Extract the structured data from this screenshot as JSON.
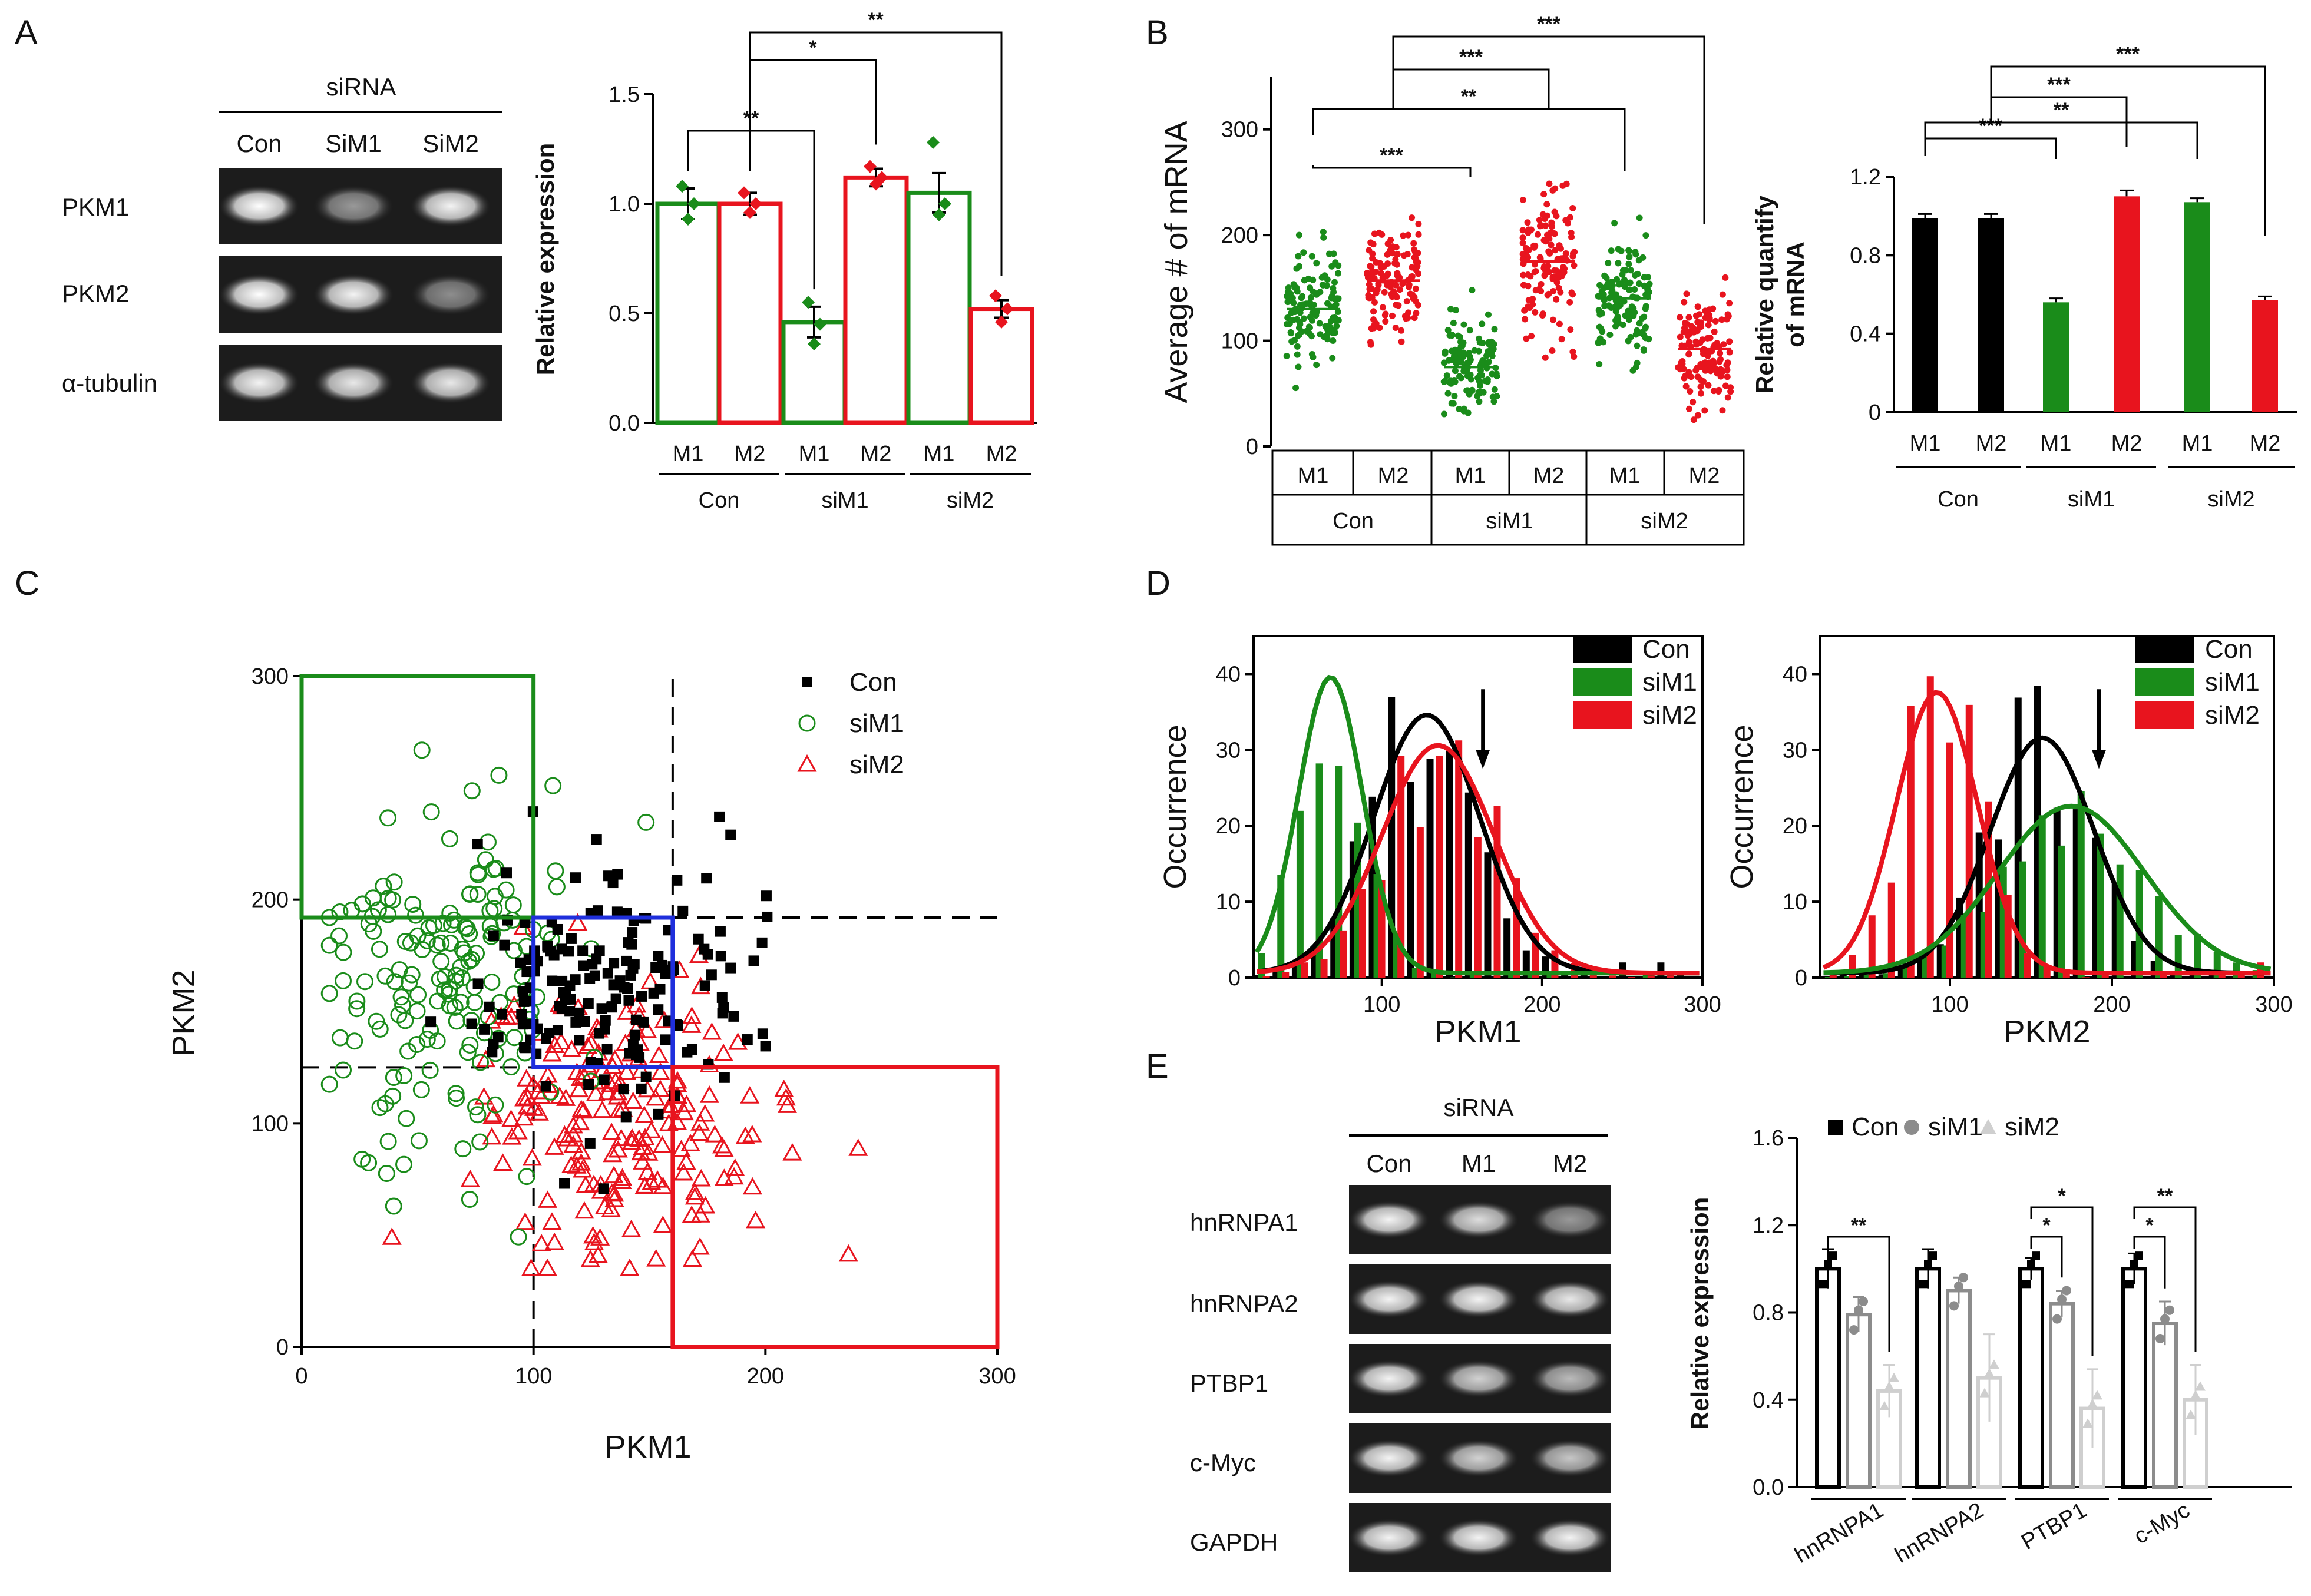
{
  "figure": {
    "panels": {
      "a": "A",
      "b": "B",
      "c": "C",
      "d": "D",
      "e": "E"
    },
    "gel_a": {
      "header": "siRNA",
      "lanes": [
        "Con",
        "SiM1",
        "SiM2"
      ],
      "rows": [
        "PKM1",
        "PKM2",
        "α-tubulin"
      ]
    },
    "gel_e": {
      "header": "siRNA",
      "lanes": [
        "Con",
        "M1",
        "M2"
      ],
      "rows": [
        "hnRNPA1",
        "hnRNPA2",
        "PTBP1",
        "c-Myc",
        "GAPDH"
      ]
    }
  },
  "colors": {
    "green": "#1a8c1a",
    "red": "#e8141e",
    "black": "#000000",
    "blue": "#1f2fdc",
    "gray": "#8c8c8c",
    "lightgray": "#cfcfcf"
  },
  "chart_data": [
    {
      "id": "A",
      "type": "bar",
      "ylabel": "Relative expression",
      "ylim": [
        0,
        1.5
      ],
      "yticks": [
        "0.0",
        "0.5",
        "1.0",
        "1.5"
      ],
      "bars": [
        {
          "label": "M1",
          "group": "Con",
          "value": 1.0,
          "err": 0.07,
          "color": "green"
        },
        {
          "label": "M2",
          "group": "Con",
          "value": 1.0,
          "err": 0.05,
          "color": "red"
        },
        {
          "label": "M1",
          "group": "siM1",
          "value": 0.46,
          "err": 0.07,
          "color": "green"
        },
        {
          "label": "M2",
          "group": "siM1",
          "value": 1.12,
          "err": 0.04,
          "color": "red"
        },
        {
          "label": "M1",
          "group": "siM2",
          "value": 1.05,
          "err": 0.09,
          "color": "green"
        },
        {
          "label": "M2",
          "group": "siM2",
          "value": 0.52,
          "err": 0.04,
          "color": "red"
        }
      ],
      "points": [
        [
          1.08,
          0.93,
          1.0
        ],
        [
          1.05,
          0.96,
          1.0
        ],
        [
          0.55,
          0.36,
          0.45
        ],
        [
          1.17,
          1.09,
          1.12
        ],
        [
          1.28,
          0.95,
          1.0
        ],
        [
          0.58,
          0.46,
          0.52
        ]
      ],
      "groups": [
        "Con",
        "siM1",
        "siM2"
      ],
      "sig": [
        {
          "a": 0,
          "b": 2,
          "label": "**"
        },
        {
          "a": 1,
          "b": 3,
          "label": "*"
        },
        {
          "a": 1,
          "b": 5,
          "label": "**"
        }
      ]
    },
    {
      "id": "B-left",
      "type": "scatter",
      "ylabel": "Average # of mRNA",
      "ylim": [
        0,
        350
      ],
      "yticks": [
        "0",
        "100",
        "200",
        "300"
      ],
      "columns": [
        {
          "label": "M1",
          "group": "Con",
          "mean": 130,
          "sd": 25,
          "color": "green"
        },
        {
          "label": "M2",
          "group": "Con",
          "mean": 157,
          "sd": 25,
          "color": "red"
        },
        {
          "label": "M1",
          "group": "siM1",
          "mean": 75,
          "sd": 22,
          "color": "green"
        },
        {
          "label": "M2",
          "group": "siM1",
          "mean": 175,
          "sd": 35,
          "color": "red"
        },
        {
          "label": "M1",
          "group": "siM2",
          "mean": 140,
          "sd": 28,
          "color": "green"
        },
        {
          "label": "M2",
          "group": "siM2",
          "mean": 92,
          "sd": 28,
          "color": "red"
        }
      ],
      "groups": [
        "Con",
        "siM1",
        "siM2"
      ],
      "sig": [
        {
          "a": 0,
          "b": 2,
          "label": "***"
        },
        {
          "a": 0,
          "b": 4,
          "label": "**"
        },
        {
          "a": 1,
          "b": 3,
          "label": "***"
        },
        {
          "a": 1,
          "b": 5,
          "label": "***"
        }
      ]
    },
    {
      "id": "B-right",
      "type": "bar",
      "ylabel": "Relative quantify",
      "ylabel2": "of mRNA",
      "ylim": [
        0,
        1.2
      ],
      "yticks": [
        "0",
        "0.4",
        "0.8",
        "1.2"
      ],
      "bars": [
        {
          "label": "M1",
          "group": "Con",
          "value": 0.99,
          "err": 0.02,
          "color": "black"
        },
        {
          "label": "M2",
          "group": "Con",
          "value": 0.99,
          "err": 0.02,
          "color": "black"
        },
        {
          "label": "M1",
          "group": "siM1",
          "value": 0.56,
          "err": 0.02,
          "color": "green"
        },
        {
          "label": "M2",
          "group": "siM1",
          "value": 1.1,
          "err": 0.03,
          "color": "red"
        },
        {
          "label": "M1",
          "group": "siM2",
          "value": 1.07,
          "err": 0.02,
          "color": "green"
        },
        {
          "label": "M2",
          "group": "siM2",
          "value": 0.57,
          "err": 0.02,
          "color": "red"
        }
      ],
      "groups": [
        "Con",
        "siM1",
        "siM2"
      ],
      "sig": [
        {
          "a": 0,
          "b": 2,
          "label": "***"
        },
        {
          "a": 0,
          "b": 4,
          "label": "**"
        },
        {
          "a": 1,
          "b": 3,
          "label": "***"
        },
        {
          "a": 1,
          "b": 5,
          "label": "***"
        }
      ]
    },
    {
      "id": "C",
      "type": "scatter",
      "xlabel": "PKM1",
      "ylabel": "PKM2",
      "xlim": [
        0,
        300
      ],
      "ylim": [
        0,
        300
      ],
      "xticks": [
        "0",
        "100",
        "200",
        "300"
      ],
      "yticks": [
        "0",
        "100",
        "200",
        "300"
      ],
      "legend": [
        "Con",
        "siM1",
        "siM2"
      ],
      "series": [
        {
          "name": "Con",
          "cx": 130,
          "cy": 160,
          "sx": 28,
          "sy": 30,
          "n": 170
        },
        {
          "name": "siM1",
          "cx": 65,
          "cy": 160,
          "sx": 28,
          "sy": 40,
          "n": 170
        },
        {
          "name": "siM2",
          "cx": 135,
          "cy": 100,
          "sx": 32,
          "sy": 30,
          "n": 200
        }
      ],
      "dashed_x": [
        100,
        160
      ],
      "dashed_y": [
        125,
        192
      ],
      "boxes": [
        {
          "color": "green",
          "x0": 0,
          "x1": 100,
          "y0": 192,
          "y1": 300
        },
        {
          "color": "blue",
          "x0": 100,
          "x1": 160,
          "y0": 125,
          "y1": 192
        },
        {
          "color": "red",
          "x0": 160,
          "x1": 300,
          "y0": 0,
          "y1": 125
        }
      ]
    },
    {
      "id": "D-left",
      "type": "bar",
      "xlabel": "PKM1",
      "ylabel": "Occurrence",
      "xlim": [
        20,
        300
      ],
      "ylim": [
        0,
        45
      ],
      "xticks": [
        "100",
        "200",
        "300"
      ],
      "yticks": [
        "0",
        "10",
        "20",
        "30",
        "40"
      ],
      "legend": [
        "Con",
        "siM1",
        "siM2"
      ],
      "series": [
        {
          "name": "Con",
          "mu": 128,
          "sigma": 33,
          "amp": 34
        },
        {
          "name": "siM1",
          "mu": 68,
          "sigma": 20,
          "amp": 39
        },
        {
          "name": "siM2",
          "mu": 135,
          "sigma": 35,
          "amp": 30
        }
      ],
      "arrow_x": 163
    },
    {
      "id": "D-right",
      "type": "bar",
      "xlabel": "PKM2",
      "ylabel": "Occurrence",
      "xlim": [
        20,
        300
      ],
      "ylim": [
        0,
        45
      ],
      "xticks": [
        "100",
        "200",
        "300"
      ],
      "yticks": [
        "0",
        "10",
        "20",
        "30",
        "40"
      ],
      "legend": [
        "Con",
        "siM1",
        "siM2"
      ],
      "series": [
        {
          "name": "Con",
          "mu": 157,
          "sigma": 32,
          "amp": 31
        },
        {
          "name": "siM1",
          "mu": 175,
          "sigma": 45,
          "amp": 22
        },
        {
          "name": "siM2",
          "mu": 92,
          "sigma": 25,
          "amp": 37
        }
      ],
      "arrow_x": 192
    },
    {
      "id": "E",
      "type": "bar",
      "ylabel": "Relative expression",
      "ylim": [
        0,
        1.6
      ],
      "yticks": [
        "0.0",
        "0.4",
        "0.8",
        "1.2",
        "1.6"
      ],
      "legend": [
        "Con",
        "siM1",
        "siM2"
      ],
      "categories": [
        "hnRNPA1",
        "hnRNPA2",
        "PTBP1",
        "c-Myc"
      ],
      "series": [
        {
          "name": "Con",
          "values": [
            1.0,
            1.0,
            1.0,
            1.0
          ]
        },
        {
          "name": "siM1",
          "values": [
            0.79,
            0.9,
            0.84,
            0.75
          ]
        },
        {
          "name": "siM2",
          "values": [
            0.44,
            0.5,
            0.36,
            0.4
          ]
        }
      ],
      "errs": [
        [
          0.09,
          0.09,
          0.05,
          0.07
        ],
        [
          0.08,
          0.06,
          0.06,
          0.1
        ],
        [
          0.12,
          0.2,
          0.18,
          0.16
        ]
      ],
      "sig": [
        {
          "cat": 0,
          "a": 0,
          "b": 2,
          "label": "**",
          "lvl": 0
        },
        {
          "cat": 2,
          "a": 0,
          "b": 1,
          "label": "*",
          "lvl": 0
        },
        {
          "cat": 2,
          "a": 0,
          "b": 2,
          "label": "*",
          "lvl": 1
        },
        {
          "cat": 3,
          "a": 0,
          "b": 1,
          "label": "*",
          "lvl": 0
        },
        {
          "cat": 3,
          "a": 0,
          "b": 2,
          "label": "**",
          "lvl": 1
        }
      ]
    }
  ]
}
